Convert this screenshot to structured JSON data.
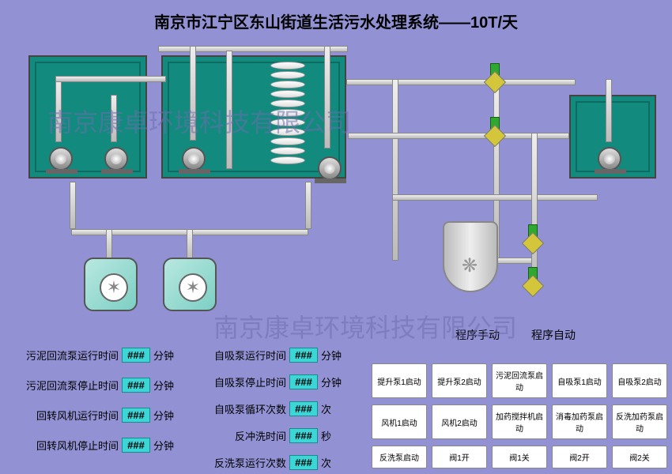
{
  "title": "南京市江宁区东山街道生活污水处理系统——10T/天",
  "watermark": "南京康卓环境科技有限公司",
  "mode_manual": "程序手动",
  "mode_auto": "程序自动",
  "params_left": [
    {
      "label": "污泥回流泵运行时间",
      "value": "###",
      "unit": "分钟"
    },
    {
      "label": "污泥回流泵停止时间",
      "value": "###",
      "unit": "分钟"
    },
    {
      "label": "回转风机运行时间",
      "value": "###",
      "unit": "分钟"
    },
    {
      "label": "回转风机停止时间",
      "value": "###",
      "unit": "分钟"
    }
  ],
  "params_right": [
    {
      "label": "自吸泵运行时间",
      "value": "###",
      "unit": "分钟"
    },
    {
      "label": "自吸泵停止时间",
      "value": "###",
      "unit": "分钟"
    },
    {
      "label": "自吸泵循环次数",
      "value": "###",
      "unit": "次"
    },
    {
      "label": "反冲洗时间",
      "value": "###",
      "unit": "秒"
    },
    {
      "label": "反洗泵运行次数",
      "value": "###",
      "unit": "次"
    }
  ],
  "buttons": [
    "提升泵1启动",
    "提升泵2启动",
    "污泥回流泵启动",
    "自吸泵1启动",
    "自吸泵2启动",
    "风机1启动",
    "风机2启动",
    "加药搅拌机启动",
    "消毒加药泵启动",
    "反洗加药泵启动",
    "反洗泵启动",
    "阀1开",
    "阀1关",
    "阀2开",
    "阀2关"
  ],
  "colors": {
    "bg": "#9191d4",
    "tank": "#128a7e",
    "value_bg": "#3dd6d6",
    "valve_body": "#d4c63a",
    "valve_handle": "#2ea82e"
  }
}
